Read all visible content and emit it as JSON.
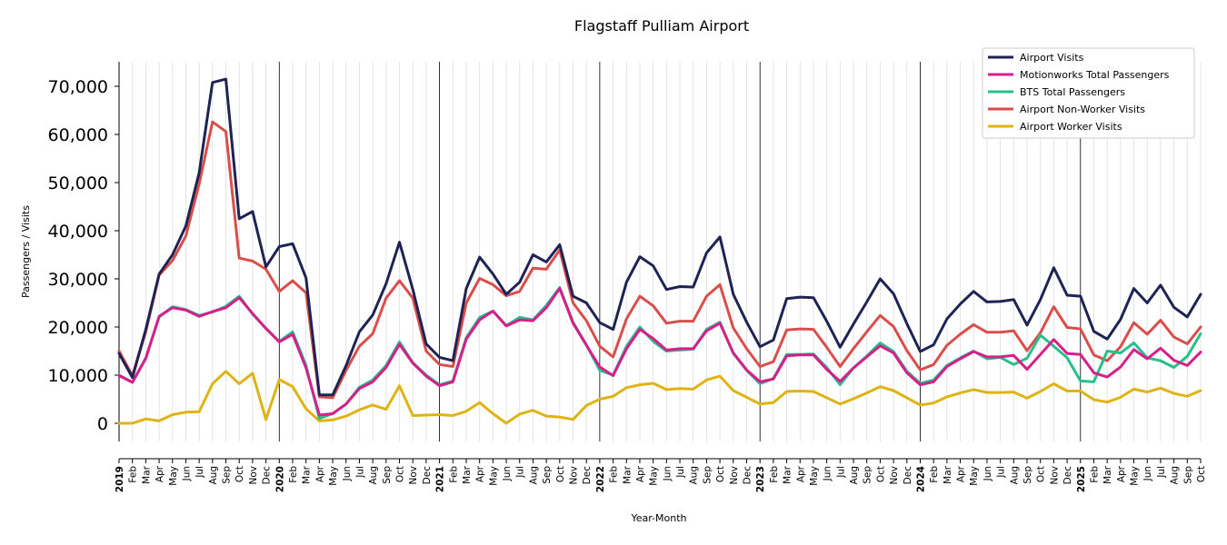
{
  "chart_data": {
    "type": "line",
    "title": "Flagstaff Pulliam Airport",
    "xlabel": "Year-Month",
    "ylabel": "Passengers / Visits",
    "ylim": [
      -7000,
      75000
    ],
    "yticks": [
      0,
      10000,
      20000,
      30000,
      40000,
      50000,
      60000,
      70000
    ],
    "ytick_labels": [
      "0",
      "10,000",
      "20,000",
      "30,000",
      "40,000",
      "50,000",
      "60,000",
      "70,000"
    ],
    "grid": "vertical monthly lines; darker lines at each January",
    "legend_position": "top-right",
    "x": [
      "2019",
      "Feb",
      "Mar",
      "Apr",
      "May",
      "Jun",
      "Jul",
      "Aug",
      "Sep",
      "Oct",
      "Nov",
      "Dec",
      "2020",
      "Feb",
      "Mar",
      "Apr",
      "May",
      "Jun",
      "Jul",
      "Aug",
      "Sep",
      "Oct",
      "Nov",
      "Dec",
      "2021",
      "Feb",
      "Mar",
      "Apr",
      "May",
      "Jun",
      "Jul",
      "Aug",
      "Sep",
      "Oct",
      "Nov",
      "Dec",
      "2022",
      "Feb",
      "Mar",
      "Apr",
      "May",
      "Jun",
      "Jul",
      "Aug",
      "Sep",
      "Oct",
      "Nov",
      "Dec",
      "2023",
      "Feb",
      "Mar",
      "Apr",
      "May",
      "Jun",
      "Jul",
      "Aug",
      "Sep",
      "Oct",
      "Nov",
      "Dec",
      "2024",
      "Feb",
      "Mar",
      "Apr",
      "May",
      "Jun",
      "Jul",
      "Aug",
      "Sep",
      "Oct",
      "Nov",
      "Dec",
      "2025",
      "Feb",
      "Mar",
      "Apr",
      "May",
      "Jun",
      "Jul",
      "Aug",
      "Sep",
      "Oct"
    ],
    "series": [
      {
        "name": "Airport Visits",
        "color": "#1f2254",
        "values": [
          14500,
          9500,
          19500,
          31000,
          35000,
          41000,
          52000,
          70800,
          71500,
          42500,
          44000,
          32500,
          36700,
          37300,
          30200,
          5900,
          5900,
          12000,
          19000,
          22500,
          29000,
          37600,
          27800,
          16500,
          13700,
          13000,
          28000,
          34500,
          31000,
          26800,
          29300,
          35000,
          33500,
          37100,
          26400,
          25000,
          20900,
          19500,
          29300,
          34600,
          32700,
          27800,
          28400,
          28300,
          35400,
          38700,
          26800,
          21000,
          15900,
          17300,
          25900,
          26200,
          26100,
          21200,
          15800,
          20600,
          25200,
          30000,
          26900,
          20700,
          14900,
          16300,
          21700,
          24800,
          27400,
          25200,
          25300,
          25700,
          20400,
          25700,
          32300,
          26600,
          26400,
          19100,
          17500,
          21600,
          28000,
          25000,
          28700,
          24100,
          22100,
          26800
        ]
      },
      {
        "name": "Motionworks Total Passengers",
        "color": "#d61f8a",
        "values": [
          9900,
          8500,
          13500,
          22200,
          24000,
          23500,
          22200,
          23200,
          24000,
          26100,
          22800,
          19700,
          16900,
          18500,
          11500,
          1700,
          2000,
          4000,
          7200,
          8600,
          11600,
          16400,
          12500,
          9800,
          7800,
          8600,
          17500,
          21500,
          23300,
          20200,
          21500,
          21300,
          24000,
          28000,
          20800,
          16200,
          11700,
          9900,
          15500,
          19500,
          17600,
          15200,
          15500,
          15500,
          19200,
          20800,
          14600,
          11100,
          8600,
          9200,
          14000,
          14200,
          14200,
          11200,
          8700,
          11500,
          13800,
          16100,
          14600,
          10500,
          8000,
          8600,
          11800,
          13400,
          14900,
          13800,
          13800,
          14100,
          11200,
          14300,
          17400,
          14500,
          14300,
          10500,
          9600,
          11700,
          15300,
          13400,
          15600,
          13100,
          12000,
          14800
        ]
      },
      {
        "name": "BTS Total Passengers",
        "color": "#27c08a",
        "values": [
          10000,
          8500,
          13500,
          22100,
          24200,
          23600,
          22400,
          23100,
          24300,
          26400,
          22700,
          19700,
          17000,
          19000,
          12000,
          1000,
          2000,
          4000,
          7500,
          9000,
          12000,
          16900,
          12600,
          10000,
          8000,
          8800,
          17800,
          22000,
          23300,
          20300,
          22000,
          21500,
          24500,
          28200,
          21000,
          16300,
          11000,
          10000,
          16000,
          20000,
          17000,
          15000,
          15200,
          15400,
          19500,
          21000,
          14500,
          11000,
          8200,
          9300,
          14300,
          14300,
          14400,
          11600,
          8000,
          11500,
          14000,
          16700,
          14900,
          10800,
          8300,
          9000,
          12000,
          13600,
          15000,
          13400,
          13700,
          12200,
          13500,
          18300,
          16000,
          13600,
          8800,
          8600,
          15000,
          14600,
          16700,
          13600,
          13000,
          11600,
          13900,
          18600
        ]
      },
      {
        "name": "Airport Non-Worker Visits",
        "color": "#d94e4a",
        "values": [
          15000,
          9900,
          19000,
          30800,
          33800,
          38900,
          49700,
          62600,
          60600,
          34300,
          33700,
          32000,
          27400,
          29600,
          27100,
          5500,
          5300,
          11000,
          16000,
          18600,
          26000,
          29600,
          26000,
          15000,
          12200,
          11800,
          25000,
          30100,
          28800,
          26500,
          27400,
          32200,
          32000,
          36000,
          25000,
          21300,
          16000,
          13800,
          21700,
          26400,
          24400,
          20800,
          21200,
          21200,
          26400,
          28800,
          19800,
          15500,
          11800,
          12800,
          19400,
          19600,
          19500,
          15800,
          11800,
          15500,
          19000,
          22400,
          20100,
          15100,
          11100,
          12200,
          16200,
          18500,
          20500,
          18900,
          18900,
          19200,
          15100,
          18800,
          24200,
          19900,
          19600,
          14200,
          13000,
          15900,
          20900,
          18500,
          21400,
          17900,
          16500,
          20000
        ]
      },
      {
        "name": "Airport Worker Visits",
        "color": "#e0b314",
        "values": [
          0,
          0,
          900,
          500,
          1800,
          2300,
          2400,
          8200,
          10800,
          8200,
          10400,
          800,
          9100,
          7600,
          3000,
          500,
          700,
          1500,
          2800,
          3800,
          2900,
          7800,
          1600,
          1700,
          1800,
          1600,
          2500,
          4300,
          2000,
          0,
          1900,
          2700,
          1500,
          1300,
          800,
          3700,
          5000,
          5600,
          7400,
          8000,
          8300,
          7000,
          7200,
          7100,
          9000,
          9800,
          6800,
          5400,
          4000,
          4300,
          6600,
          6700,
          6600,
          5300,
          4000,
          5100,
          6300,
          7600,
          6800,
          5300,
          3800,
          4200,
          5500,
          6300,
          7000,
          6400,
          6400,
          6500,
          5200,
          6600,
          8200,
          6700,
          6700,
          4900,
          4400,
          5400,
          7100,
          6500,
          7300,
          6200,
          5600,
          6800
        ]
      }
    ]
  }
}
